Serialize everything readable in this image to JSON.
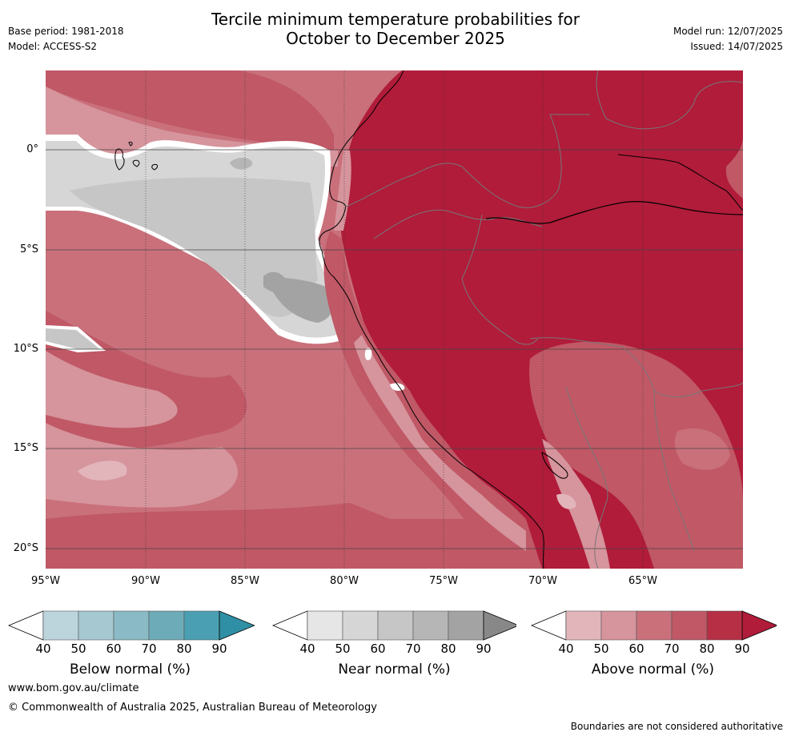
{
  "title": {
    "line1": "Tercile minimum temperature probabilities for",
    "line2": "October to December 2025"
  },
  "meta": {
    "base_period": "Base period: 1981-2018",
    "model": "Model: ACCESS-S2",
    "model_run": "Model run: 12/07/2025",
    "issued": "Issued: 14/07/2025"
  },
  "axes": {
    "lat_labels": [
      "0°",
      "5°S",
      "10°S",
      "15°S",
      "20°S"
    ],
    "lon_labels": [
      "95°W",
      "90°W",
      "85°W",
      "80°W",
      "75°W",
      "70°W",
      "65°W"
    ]
  },
  "colors": {
    "below": [
      "#ffffff",
      "#bcd5dc",
      "#a6c9d1",
      "#8abac6",
      "#6eabb9",
      "#4aa0b2",
      "#2f8fa4"
    ],
    "near": [
      "#ffffff",
      "#e6e6e6",
      "#d6d6d6",
      "#c6c6c6",
      "#b6b6b6",
      "#a3a3a3",
      "#888888"
    ],
    "above": [
      "#ffffff",
      "#e2b5bb",
      "#d6949c",
      "#c9707b",
      "#c05866",
      "#b62f45",
      "#b01c3a"
    ]
  },
  "colorbars": [
    {
      "key": "below",
      "label": "Below normal (%)",
      "ticks": [
        "40",
        "50",
        "60",
        "70",
        "80",
        "90"
      ]
    },
    {
      "key": "near",
      "label": "Near normal (%)",
      "ticks": [
        "40",
        "50",
        "60",
        "70",
        "80",
        "90"
      ]
    },
    {
      "key": "above",
      "label": "Above normal (%)",
      "ticks": [
        "40",
        "50",
        "60",
        "70",
        "80",
        "90"
      ]
    }
  ],
  "footer": {
    "url": "www.bom.gov.au/climate",
    "copyright": "© Commonwealth of Australia 2025, Australian Bureau of Meteorology",
    "disclaimer": "Boundaries are not considered authoritative"
  }
}
